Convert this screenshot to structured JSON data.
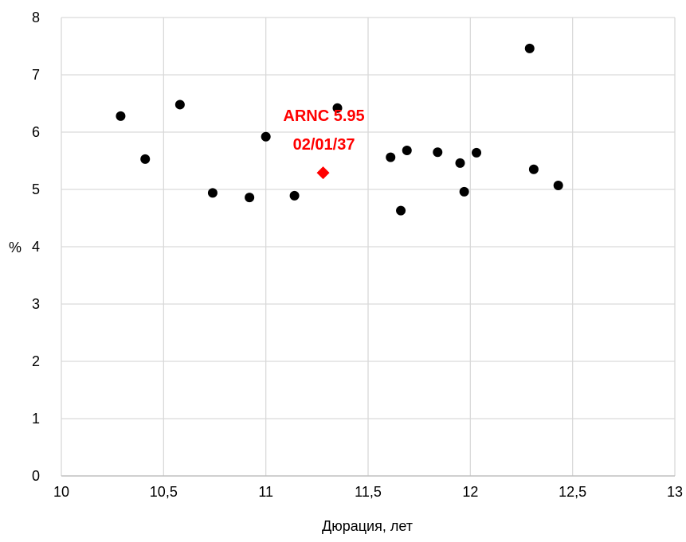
{
  "chart_data": {
    "type": "scatter",
    "title": "",
    "xlabel": "Дюрация, лет",
    "ylabel": "%",
    "xlim": [
      10,
      13
    ],
    "ylim": [
      0,
      8
    ],
    "x_ticks": [
      10,
      10.5,
      11,
      11.5,
      12,
      12.5,
      13
    ],
    "x_tick_labels": [
      "10",
      "10,5",
      "11",
      "11,5",
      "12",
      "12,5",
      "13"
    ],
    "y_ticks": [
      0,
      1,
      2,
      3,
      4,
      5,
      6,
      7,
      8
    ],
    "y_tick_labels": [
      "0",
      "1",
      "2",
      "3",
      "4",
      "5",
      "6",
      "7",
      "8"
    ],
    "grid": true,
    "legend": "none",
    "series": [
      {
        "marker": "circle",
        "color": "#000000",
        "points": [
          {
            "x": 10.29,
            "y": 6.28
          },
          {
            "x": 10.41,
            "y": 5.53
          },
          {
            "x": 10.58,
            "y": 6.48
          },
          {
            "x": 10.74,
            "y": 4.94
          },
          {
            "x": 10.92,
            "y": 4.86
          },
          {
            "x": 11.0,
            "y": 5.92
          },
          {
            "x": 11.14,
            "y": 4.89
          },
          {
            "x": 11.35,
            "y": 6.42
          },
          {
            "x": 11.61,
            "y": 5.56
          },
          {
            "x": 11.66,
            "y": 4.63
          },
          {
            "x": 11.69,
            "y": 5.68
          },
          {
            "x": 11.84,
            "y": 5.65
          },
          {
            "x": 11.95,
            "y": 5.46
          },
          {
            "x": 11.97,
            "y": 4.96
          },
          {
            "x": 12.03,
            "y": 5.64
          },
          {
            "x": 12.29,
            "y": 7.46
          },
          {
            "x": 12.31,
            "y": 5.35
          },
          {
            "x": 12.43,
            "y": 5.07
          }
        ]
      },
      {
        "marker": "diamond",
        "color": "#ff0000",
        "points": [
          {
            "x": 11.28,
            "y": 5.29
          }
        ]
      }
    ],
    "annotations": [
      {
        "lines": [
          "ARNC 5.95",
          "02/01/37"
        ],
        "x": 11.28,
        "y": 5.29,
        "color": "#ff0000"
      }
    ]
  }
}
